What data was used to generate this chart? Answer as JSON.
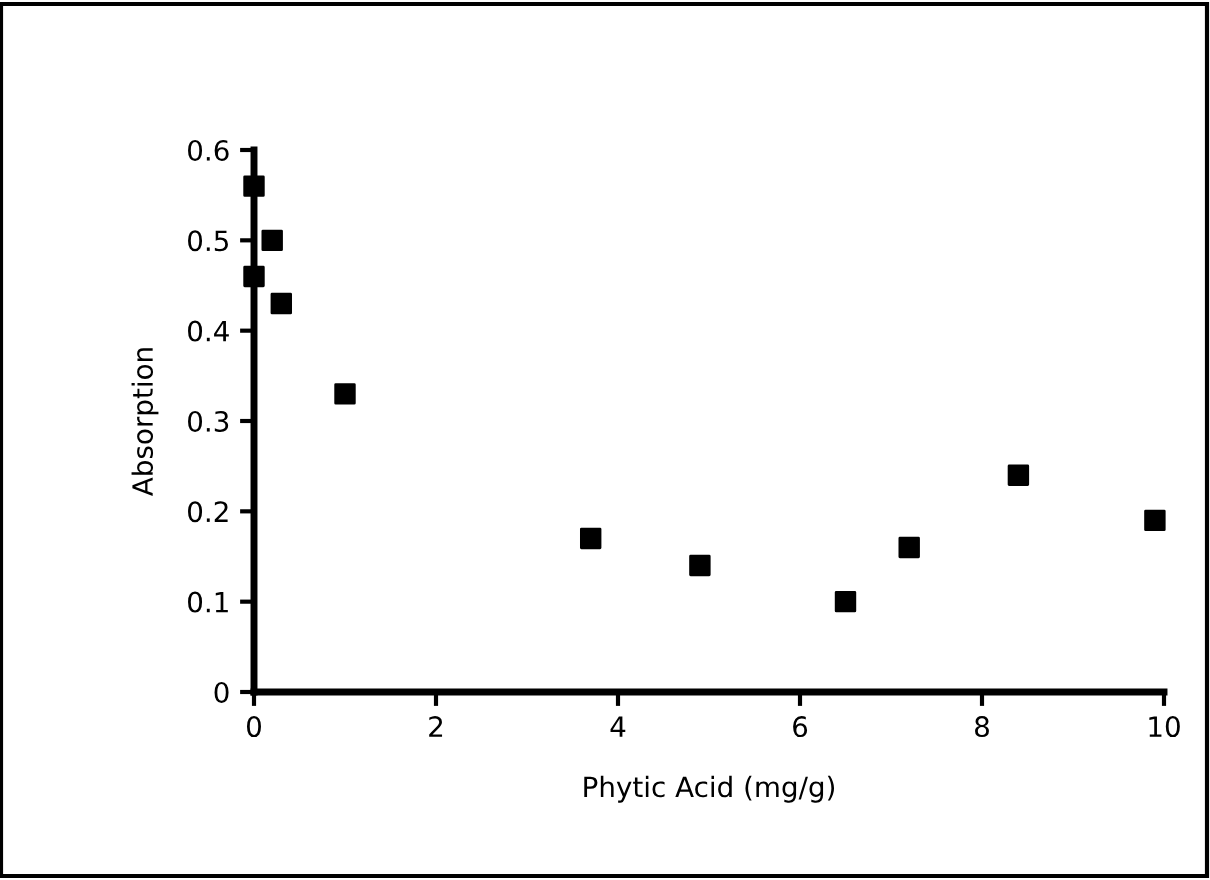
{
  "chart_data": {
    "type": "scatter",
    "xlabel": "Phytic Acid (mg/g)",
    "ylabel": "Absorption",
    "series": [
      {
        "color": "#000000",
        "x": [
          0,
          0.2,
          0,
          0.3,
          1,
          3.7,
          4.9,
          6.5,
          7.2,
          8.4,
          9.9
        ],
        "values": [
          0.56,
          0.5,
          0.46,
          0.43,
          0.33,
          0.17,
          0.14,
          0.1,
          0.16,
          0.24,
          0.19
        ]
      }
    ],
    "xlim": [
      0,
      10
    ],
    "xticks": [
      0,
      2,
      4,
      6,
      8,
      10
    ],
    "ylim": [
      0,
      0.6
    ],
    "yticks": [
      0,
      0.1,
      0.2,
      0.3,
      0.4,
      0.5,
      0.6
    ],
    "marker": "square",
    "grid": false,
    "legend": false
  }
}
